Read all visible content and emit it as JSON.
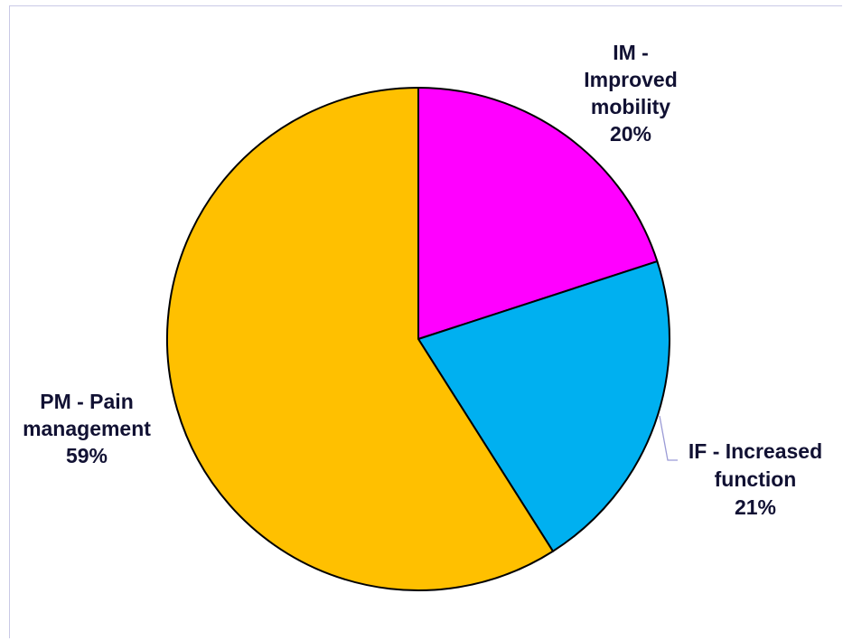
{
  "chart_data": {
    "type": "pie",
    "title": "",
    "slices": [
      {
        "name": "IM - Improved mobility",
        "value": 20,
        "label_lines": [
          "IM -",
          "Improved",
          "mobility",
          "20%"
        ],
        "color": "#ff00ff"
      },
      {
        "name": "IF - Increased function",
        "value": 21,
        "label_lines": [
          "IF - Increased",
          "function",
          "21%"
        ],
        "color": "#00b0f0"
      },
      {
        "name": "PM - Pain management",
        "value": 59,
        "label_lines": [
          "PM - Pain",
          "management",
          "59%"
        ],
        "color": "#ffc000"
      }
    ],
    "start_angle_deg": 0,
    "direction": "clockwise",
    "legend": "none",
    "label_color": "#111133",
    "outline_color": "#000000"
  }
}
